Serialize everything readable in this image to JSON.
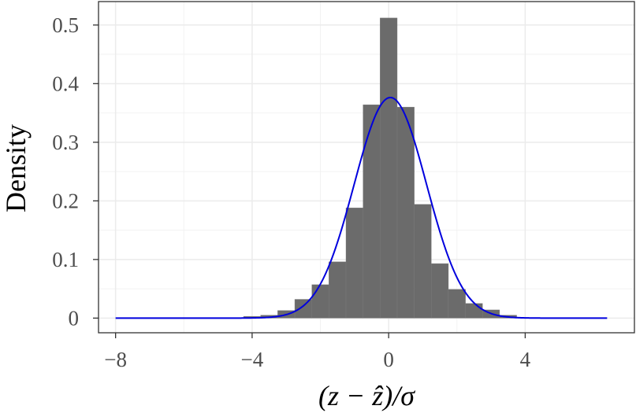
{
  "chart_data": {
    "type": "bar",
    "title": "",
    "xlabel": "(z − ẑ)/σ",
    "ylabel": "Density",
    "xlim": [
      -8.5,
      7.2
    ],
    "ylim": [
      -0.025,
      0.54
    ],
    "x_ticks": [
      -8,
      -4,
      0,
      4
    ],
    "x_tick_labels": [
      "−8",
      "−4",
      "0",
      "4"
    ],
    "y_ticks": [
      0,
      0.1,
      0.2,
      0.3,
      0.4,
      0.5
    ],
    "y_tick_labels": [
      "0",
      "0.1",
      "0.2",
      "0.3",
      "0.4",
      "0.5"
    ],
    "grid": true,
    "bin_width": 0.5,
    "histogram": {
      "bin_starts": [
        -4.25,
        -3.75,
        -3.25,
        -2.75,
        -2.25,
        -1.75,
        -1.25,
        -0.75,
        -0.25,
        0.25,
        0.75,
        1.25,
        1.75,
        2.25,
        2.75,
        3.25
      ],
      "density": [
        0.003,
        0.005,
        0.013,
        0.032,
        0.057,
        0.096,
        0.188,
        0.364,
        0.512,
        0.36,
        0.194,
        0.093,
        0.049,
        0.025,
        0.014,
        0.005
      ],
      "color": "#6b6b6b"
    },
    "series": [
      {
        "type": "line",
        "color": "#0000dd",
        "function": "normal_pdf",
        "mean": 0.05,
        "sd": 1.06,
        "x_range": [
          -8,
          6.4
        ]
      }
    ]
  }
}
